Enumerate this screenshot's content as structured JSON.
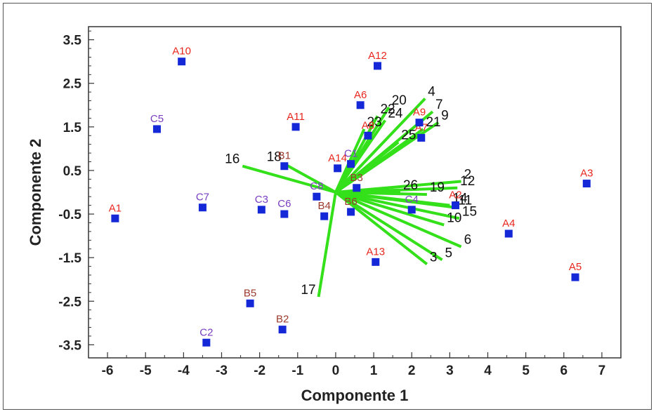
{
  "chart_data": {
    "type": "scatter",
    "title": "",
    "xlabel": "Componente 1",
    "ylabel": "Componente 2",
    "xlim": [
      -6.5,
      7.5
    ],
    "ylim": [
      -3.8,
      3.8
    ],
    "xticks": [
      -6,
      -5,
      -4,
      -3,
      -2,
      -1,
      0,
      1,
      2,
      3,
      4,
      5,
      6,
      7
    ],
    "yticks": [
      3.5,
      2.5,
      1.5,
      0.5,
      -0.5,
      -1.5,
      -2.5,
      -3.5
    ],
    "xtick_labels": [
      "-6",
      "-5",
      "-4",
      "-3",
      "-2",
      "-1",
      "0",
      "1",
      "2",
      "3",
      "4",
      "5",
      "6",
      "7"
    ],
    "ytick_labels": [
      "3.5",
      "2.5",
      "1.5",
      "0.5",
      "-0.5",
      "-1.5",
      "-2.5",
      "-3.5"
    ],
    "grid": false,
    "colors": {
      "points": "#1428d8",
      "vectors": "#33e01a",
      "label_a": "#e8261e",
      "label_b": "#9c3a2c",
      "label_c": "#7a3ec0"
    },
    "points": [
      {
        "label": "A1",
        "x": -5.8,
        "y": -0.6,
        "group": "A"
      },
      {
        "label": "A2",
        "x": 3.15,
        "y": -0.3,
        "group": "A"
      },
      {
        "label": "A3",
        "x": 6.6,
        "y": 0.2,
        "group": "A"
      },
      {
        "label": "A4",
        "x": 4.55,
        "y": -0.95,
        "group": "A"
      },
      {
        "label": "A5",
        "x": 6.3,
        "y": -1.95,
        "group": "A"
      },
      {
        "label": "A6",
        "x": 0.65,
        "y": 2.0,
        "group": "A"
      },
      {
        "label": "A7",
        "x": 2.25,
        "y": 1.25,
        "group": "A"
      },
      {
        "label": "A8",
        "x": 0.85,
        "y": 1.3,
        "group": "A"
      },
      {
        "label": "A9",
        "x": 2.2,
        "y": 1.6,
        "group": "A"
      },
      {
        "label": "A10",
        "x": -4.05,
        "y": 3.0,
        "group": "A"
      },
      {
        "label": "A11",
        "x": -1.05,
        "y": 1.5,
        "group": "A"
      },
      {
        "label": "A12",
        "x": 1.1,
        "y": 2.9,
        "group": "A"
      },
      {
        "label": "A13",
        "x": 1.05,
        "y": -1.6,
        "group": "A"
      },
      {
        "label": "A14",
        "x": 0.05,
        "y": 0.55,
        "group": "A"
      },
      {
        "label": "B1",
        "x": -1.35,
        "y": 0.6,
        "group": "B"
      },
      {
        "label": "B2",
        "x": -1.4,
        "y": -3.15,
        "group": "B"
      },
      {
        "label": "B3",
        "x": 0.55,
        "y": 0.1,
        "group": "B"
      },
      {
        "label": "B4",
        "x": -0.3,
        "y": -0.55,
        "group": "B"
      },
      {
        "label": "B5",
        "x": -2.25,
        "y": -2.55,
        "group": "B"
      },
      {
        "label": "B6",
        "x": 0.4,
        "y": -0.45,
        "group": "B"
      },
      {
        "label": "C1",
        "x": 0.4,
        "y": 0.65,
        "group": "C"
      },
      {
        "label": "C2",
        "x": -3.4,
        "y": -3.45,
        "group": "C"
      },
      {
        "label": "C3",
        "x": -1.95,
        "y": -0.4,
        "group": "C"
      },
      {
        "label": "C4",
        "x": 2.0,
        "y": -0.4,
        "group": "C"
      },
      {
        "label": "C5",
        "x": -4.7,
        "y": 1.45,
        "group": "C"
      },
      {
        "label": "C6",
        "x": -1.35,
        "y": -0.5,
        "group": "C"
      },
      {
        "label": "C7",
        "x": -3.5,
        "y": -0.35,
        "group": "C"
      },
      {
        "label": "C8",
        "x": -0.5,
        "y": -0.1,
        "group": "C"
      }
    ],
    "vectors": [
      {
        "label": "2",
        "x": 3.3,
        "y": 0.25
      },
      {
        "label": "3",
        "x": 2.4,
        "y": -1.65
      },
      {
        "label": "4",
        "x": 2.35,
        "y": 2.15
      },
      {
        "label": "5",
        "x": 2.8,
        "y": -1.55
      },
      {
        "label": "6",
        "x": 3.3,
        "y": -1.25
      },
      {
        "label": "7",
        "x": 2.55,
        "y": 1.85
      },
      {
        "label": "9",
        "x": 2.7,
        "y": 1.6
      },
      {
        "label": "10",
        "x": 2.85,
        "y": -0.75
      },
      {
        "label": "11",
        "x": 3.15,
        "y": -0.35
      },
      {
        "label": "12",
        "x": 3.2,
        "y": 0.1
      },
      {
        "label": "14",
        "x": 3.0,
        "y": -0.3
      },
      {
        "label": "15",
        "x": 3.25,
        "y": -0.6
      },
      {
        "label": "16",
        "x": -2.45,
        "y": 0.6
      },
      {
        "label": "17",
        "x": -0.45,
        "y": -2.4
      },
      {
        "label": "18",
        "x": -1.35,
        "y": 0.65
      },
      {
        "label": "19",
        "x": 2.4,
        "y": -0.05
      },
      {
        "label": "20",
        "x": 1.4,
        "y": 1.95
      },
      {
        "label": "21",
        "x": 2.3,
        "y": 1.45
      },
      {
        "label": "22",
        "x": 1.1,
        "y": 1.75
      },
      {
        "label": "23",
        "x": 0.75,
        "y": 1.45
      },
      {
        "label": "24",
        "x": 1.3,
        "y": 1.65
      },
      {
        "label": "25",
        "x": 1.65,
        "y": 1.15
      },
      {
        "label": "26",
        "x": 1.7,
        "y": 0.0
      }
    ]
  }
}
